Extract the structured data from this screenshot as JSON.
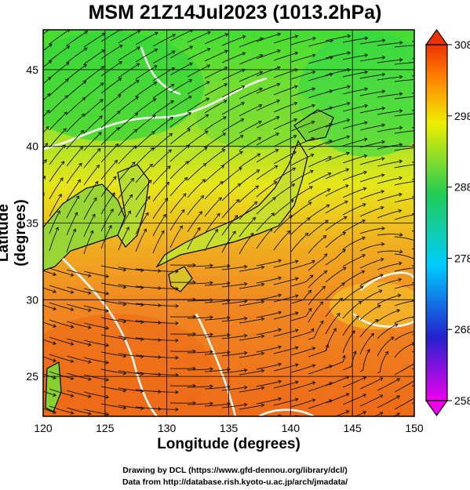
{
  "header": {
    "title": "MSM 21Z14Jul2023 (1013.2hPa)"
  },
  "axes": {
    "xlabel": "Longitude (degrees)",
    "ylabel": "Latitude  (degrees)",
    "xticks": [
      120,
      125,
      130,
      135,
      140,
      145,
      150
    ],
    "yticks": [
      25,
      30,
      35,
      40,
      45
    ],
    "xlim": [
      120,
      150
    ],
    "ylim": [
      22.4,
      47.6
    ]
  },
  "colorbar": {
    "ticks": [
      258,
      268,
      278,
      288,
      298,
      308
    ],
    "range": [
      258,
      308
    ],
    "colors": [
      "#ee00ee",
      "#2222cc",
      "#00ccff",
      "#22cc55",
      "#eeee00",
      "#ff8800",
      "#ee3300"
    ]
  },
  "credits": {
    "line1": "Drawing by DCL (https://www.gfd-dennou.org/library/dcl/)",
    "line2": "Data from http://database.rish.kyoto-u.ac.jp/arch/jmadata/"
  }
}
